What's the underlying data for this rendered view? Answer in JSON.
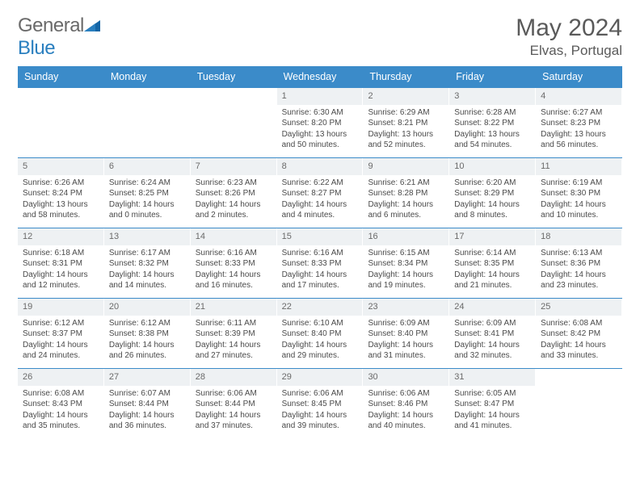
{
  "brand": {
    "part1": "General",
    "part2": "Blue"
  },
  "title": "May 2024",
  "location": "Elvas, Portugal",
  "colors": {
    "header_bg": "#3b8bc9",
    "header_text": "#ffffff",
    "daynum_bg": "#eef1f3",
    "text": "#4a4a4a",
    "row_border": "#3b8bc9",
    "page_bg": "#ffffff",
    "logo_gray": "#6a6a6a",
    "logo_blue": "#2a7fbf"
  },
  "typography": {
    "title_fontsize": 30,
    "location_fontsize": 17,
    "header_fontsize": 12.5,
    "cell_fontsize": 10,
    "daynum_fontsize": 11
  },
  "day_headers": [
    "Sunday",
    "Monday",
    "Tuesday",
    "Wednesday",
    "Thursday",
    "Friday",
    "Saturday"
  ],
  "weeks": [
    [
      {
        "n": "",
        "sunrise": "",
        "sunset": "",
        "daylight": ""
      },
      {
        "n": "",
        "sunrise": "",
        "sunset": "",
        "daylight": ""
      },
      {
        "n": "",
        "sunrise": "",
        "sunset": "",
        "daylight": ""
      },
      {
        "n": "1",
        "sunrise": "Sunrise: 6:30 AM",
        "sunset": "Sunset: 8:20 PM",
        "daylight": "Daylight: 13 hours and 50 minutes."
      },
      {
        "n": "2",
        "sunrise": "Sunrise: 6:29 AM",
        "sunset": "Sunset: 8:21 PM",
        "daylight": "Daylight: 13 hours and 52 minutes."
      },
      {
        "n": "3",
        "sunrise": "Sunrise: 6:28 AM",
        "sunset": "Sunset: 8:22 PM",
        "daylight": "Daylight: 13 hours and 54 minutes."
      },
      {
        "n": "4",
        "sunrise": "Sunrise: 6:27 AM",
        "sunset": "Sunset: 8:23 PM",
        "daylight": "Daylight: 13 hours and 56 minutes."
      }
    ],
    [
      {
        "n": "5",
        "sunrise": "Sunrise: 6:26 AM",
        "sunset": "Sunset: 8:24 PM",
        "daylight": "Daylight: 13 hours and 58 minutes."
      },
      {
        "n": "6",
        "sunrise": "Sunrise: 6:24 AM",
        "sunset": "Sunset: 8:25 PM",
        "daylight": "Daylight: 14 hours and 0 minutes."
      },
      {
        "n": "7",
        "sunrise": "Sunrise: 6:23 AM",
        "sunset": "Sunset: 8:26 PM",
        "daylight": "Daylight: 14 hours and 2 minutes."
      },
      {
        "n": "8",
        "sunrise": "Sunrise: 6:22 AM",
        "sunset": "Sunset: 8:27 PM",
        "daylight": "Daylight: 14 hours and 4 minutes."
      },
      {
        "n": "9",
        "sunrise": "Sunrise: 6:21 AM",
        "sunset": "Sunset: 8:28 PM",
        "daylight": "Daylight: 14 hours and 6 minutes."
      },
      {
        "n": "10",
        "sunrise": "Sunrise: 6:20 AM",
        "sunset": "Sunset: 8:29 PM",
        "daylight": "Daylight: 14 hours and 8 minutes."
      },
      {
        "n": "11",
        "sunrise": "Sunrise: 6:19 AM",
        "sunset": "Sunset: 8:30 PM",
        "daylight": "Daylight: 14 hours and 10 minutes."
      }
    ],
    [
      {
        "n": "12",
        "sunrise": "Sunrise: 6:18 AM",
        "sunset": "Sunset: 8:31 PM",
        "daylight": "Daylight: 14 hours and 12 minutes."
      },
      {
        "n": "13",
        "sunrise": "Sunrise: 6:17 AM",
        "sunset": "Sunset: 8:32 PM",
        "daylight": "Daylight: 14 hours and 14 minutes."
      },
      {
        "n": "14",
        "sunrise": "Sunrise: 6:16 AM",
        "sunset": "Sunset: 8:33 PM",
        "daylight": "Daylight: 14 hours and 16 minutes."
      },
      {
        "n": "15",
        "sunrise": "Sunrise: 6:16 AM",
        "sunset": "Sunset: 8:33 PM",
        "daylight": "Daylight: 14 hours and 17 minutes."
      },
      {
        "n": "16",
        "sunrise": "Sunrise: 6:15 AM",
        "sunset": "Sunset: 8:34 PM",
        "daylight": "Daylight: 14 hours and 19 minutes."
      },
      {
        "n": "17",
        "sunrise": "Sunrise: 6:14 AM",
        "sunset": "Sunset: 8:35 PM",
        "daylight": "Daylight: 14 hours and 21 minutes."
      },
      {
        "n": "18",
        "sunrise": "Sunrise: 6:13 AM",
        "sunset": "Sunset: 8:36 PM",
        "daylight": "Daylight: 14 hours and 23 minutes."
      }
    ],
    [
      {
        "n": "19",
        "sunrise": "Sunrise: 6:12 AM",
        "sunset": "Sunset: 8:37 PM",
        "daylight": "Daylight: 14 hours and 24 minutes."
      },
      {
        "n": "20",
        "sunrise": "Sunrise: 6:12 AM",
        "sunset": "Sunset: 8:38 PM",
        "daylight": "Daylight: 14 hours and 26 minutes."
      },
      {
        "n": "21",
        "sunrise": "Sunrise: 6:11 AM",
        "sunset": "Sunset: 8:39 PM",
        "daylight": "Daylight: 14 hours and 27 minutes."
      },
      {
        "n": "22",
        "sunrise": "Sunrise: 6:10 AM",
        "sunset": "Sunset: 8:40 PM",
        "daylight": "Daylight: 14 hours and 29 minutes."
      },
      {
        "n": "23",
        "sunrise": "Sunrise: 6:09 AM",
        "sunset": "Sunset: 8:40 PM",
        "daylight": "Daylight: 14 hours and 31 minutes."
      },
      {
        "n": "24",
        "sunrise": "Sunrise: 6:09 AM",
        "sunset": "Sunset: 8:41 PM",
        "daylight": "Daylight: 14 hours and 32 minutes."
      },
      {
        "n": "25",
        "sunrise": "Sunrise: 6:08 AM",
        "sunset": "Sunset: 8:42 PM",
        "daylight": "Daylight: 14 hours and 33 minutes."
      }
    ],
    [
      {
        "n": "26",
        "sunrise": "Sunrise: 6:08 AM",
        "sunset": "Sunset: 8:43 PM",
        "daylight": "Daylight: 14 hours and 35 minutes."
      },
      {
        "n": "27",
        "sunrise": "Sunrise: 6:07 AM",
        "sunset": "Sunset: 8:44 PM",
        "daylight": "Daylight: 14 hours and 36 minutes."
      },
      {
        "n": "28",
        "sunrise": "Sunrise: 6:06 AM",
        "sunset": "Sunset: 8:44 PM",
        "daylight": "Daylight: 14 hours and 37 minutes."
      },
      {
        "n": "29",
        "sunrise": "Sunrise: 6:06 AM",
        "sunset": "Sunset: 8:45 PM",
        "daylight": "Daylight: 14 hours and 39 minutes."
      },
      {
        "n": "30",
        "sunrise": "Sunrise: 6:06 AM",
        "sunset": "Sunset: 8:46 PM",
        "daylight": "Daylight: 14 hours and 40 minutes."
      },
      {
        "n": "31",
        "sunrise": "Sunrise: 6:05 AM",
        "sunset": "Sunset: 8:47 PM",
        "daylight": "Daylight: 14 hours and 41 minutes."
      },
      {
        "n": "",
        "sunrise": "",
        "sunset": "",
        "daylight": ""
      }
    ]
  ]
}
